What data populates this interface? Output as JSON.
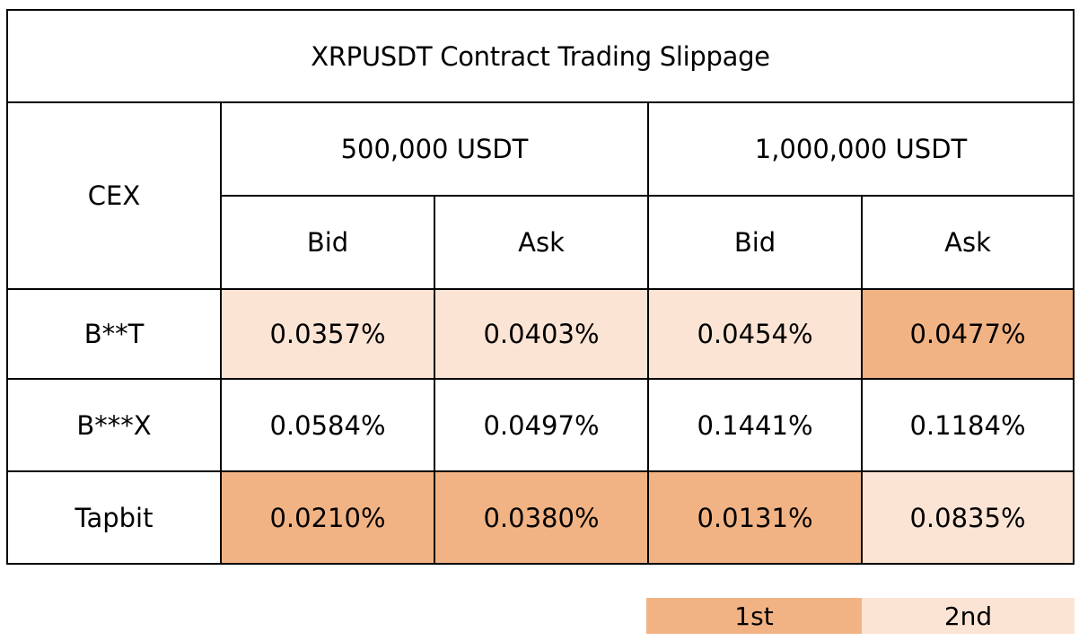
{
  "table": {
    "title": "XRPUSDT Contract Trading Slippage",
    "cex_header": "CEX",
    "group_headers": [
      "500,000 USDT",
      "1,000,000 USDT"
    ],
    "sub_headers": [
      "Bid",
      "Ask",
      "Bid",
      "Ask"
    ],
    "rows": [
      {
        "name": "B**T",
        "values": [
          "0.0357%",
          "0.0403%",
          "0.0454%",
          "0.0477%"
        ],
        "ranks": [
          2,
          2,
          2,
          1
        ]
      },
      {
        "name": "B***X",
        "values": [
          "0.0584%",
          "0.0497%",
          "0.1441%",
          "0.1184%"
        ],
        "ranks": [
          0,
          0,
          0,
          0
        ]
      },
      {
        "name": "Tapbit",
        "values": [
          "0.0210%",
          "0.0380%",
          "0.0131%",
          "0.0835%"
        ],
        "ranks": [
          1,
          1,
          1,
          2
        ]
      }
    ]
  },
  "legend": {
    "first_label": "1st",
    "second_label": "2nd",
    "first_color": "#f2b384",
    "second_color": "#fce4d4"
  }
}
